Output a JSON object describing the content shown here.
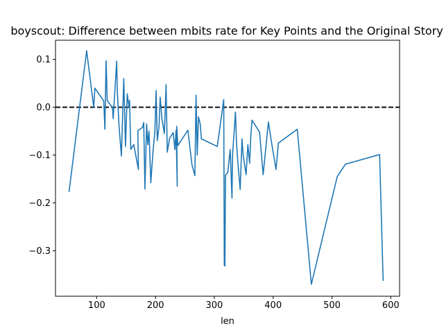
{
  "chart_data": {
    "type": "line",
    "title": "boyscout: Difference between mbits rate for Key Points and the Original Story",
    "xlabel": "len",
    "ylabel": "",
    "xlim": [
      30,
      615
    ],
    "ylim": [
      -0.395,
      0.14
    ],
    "xticks": [
      100,
      200,
      300,
      400,
      500,
      600
    ],
    "yticks": [
      0.1,
      0.0,
      -0.1,
      -0.2,
      -0.3
    ],
    "xtick_labels": [
      "100",
      "200",
      "300",
      "400",
      "500",
      "600"
    ],
    "ytick_labels": [
      "0.1",
      "0.0",
      "−0.1",
      "−0.2",
      "−0.3"
    ],
    "reference_line": {
      "y": 0.0,
      "style": "dashed",
      "color": "#000000"
    },
    "grid": false,
    "series": [
      {
        "color": "#1f77b4",
        "points": [
          [
            53,
            -0.177
          ],
          [
            83,
            0.118
          ],
          [
            95,
            0.0
          ],
          [
            97,
            0.04
          ],
          [
            112,
            0.013
          ],
          [
            114,
            -0.046
          ],
          [
            116,
            0.097
          ],
          [
            118,
            0.014
          ],
          [
            127,
            -0.001
          ],
          [
            128,
            -0.024
          ],
          [
            134,
            0.096
          ],
          [
            135,
            0.036
          ],
          [
            138,
            -0.04
          ],
          [
            142,
            -0.102
          ],
          [
            146,
            0.06
          ],
          [
            149,
            -0.082
          ],
          [
            152,
            0.028
          ],
          [
            155,
            0.0
          ],
          [
            156,
            0.014
          ],
          [
            158,
            -0.088
          ],
          [
            163,
            -0.078
          ],
          [
            171,
            -0.13
          ],
          [
            170,
            -0.049
          ],
          [
            178,
            -0.042
          ],
          [
            180,
            -0.032
          ],
          [
            182,
            -0.171
          ],
          [
            185,
            -0.035
          ],
          [
            187,
            -0.078
          ],
          [
            189,
            -0.05
          ],
          [
            192,
            -0.158
          ],
          [
            194,
            -0.124
          ],
          [
            196,
            -0.09
          ],
          [
            199,
            -0.05
          ],
          [
            201,
            0.035
          ],
          [
            203,
            -0.07
          ],
          [
            206,
            -0.04
          ],
          [
            208,
            0.021
          ],
          [
            211,
            -0.025
          ],
          [
            215,
            -0.055
          ],
          [
            218,
            0.047
          ],
          [
            220,
            -0.094
          ],
          [
            224,
            -0.065
          ],
          [
            230,
            -0.053
          ],
          [
            233,
            -0.088
          ],
          [
            235,
            -0.048
          ],
          [
            237,
            -0.165
          ],
          [
            236,
            -0.04
          ],
          [
            238,
            -0.08
          ],
          [
            255,
            -0.048
          ],
          [
            262,
            -0.12
          ],
          [
            267,
            -0.143
          ],
          [
            269,
            0.025
          ],
          [
            271,
            -0.1
          ],
          [
            273,
            -0.02
          ],
          [
            276,
            -0.035
          ],
          [
            278,
            -0.066
          ],
          [
            305,
            -0.082
          ],
          [
            316,
            0.016
          ],
          [
            317,
            -0.33
          ],
          [
            318,
            -0.332
          ],
          [
            319,
            -0.142
          ],
          [
            323,
            -0.136
          ],
          [
            327,
            -0.088
          ],
          [
            330,
            -0.19
          ],
          [
            331,
            -0.1
          ],
          [
            336,
            -0.01
          ],
          [
            338,
            -0.08
          ],
          [
            341,
            -0.13
          ],
          [
            344,
            -0.172
          ],
          [
            347,
            -0.066
          ],
          [
            349,
            -0.1
          ],
          [
            354,
            -0.141
          ],
          [
            357,
            -0.078
          ],
          [
            360,
            -0.117
          ],
          [
            362,
            -0.062
          ],
          [
            364,
            -0.027
          ],
          [
            377,
            -0.052
          ],
          [
            383,
            -0.141
          ],
          [
            392,
            -0.031
          ],
          [
            397,
            -0.072
          ],
          [
            405,
            -0.13
          ],
          [
            409,
            -0.075
          ],
          [
            441,
            -0.046
          ],
          [
            465,
            -0.37
          ],
          [
            509,
            -0.145
          ],
          [
            523,
            -0.119
          ],
          [
            581,
            -0.099
          ],
          [
            587,
            -0.363
          ]
        ]
      }
    ]
  }
}
